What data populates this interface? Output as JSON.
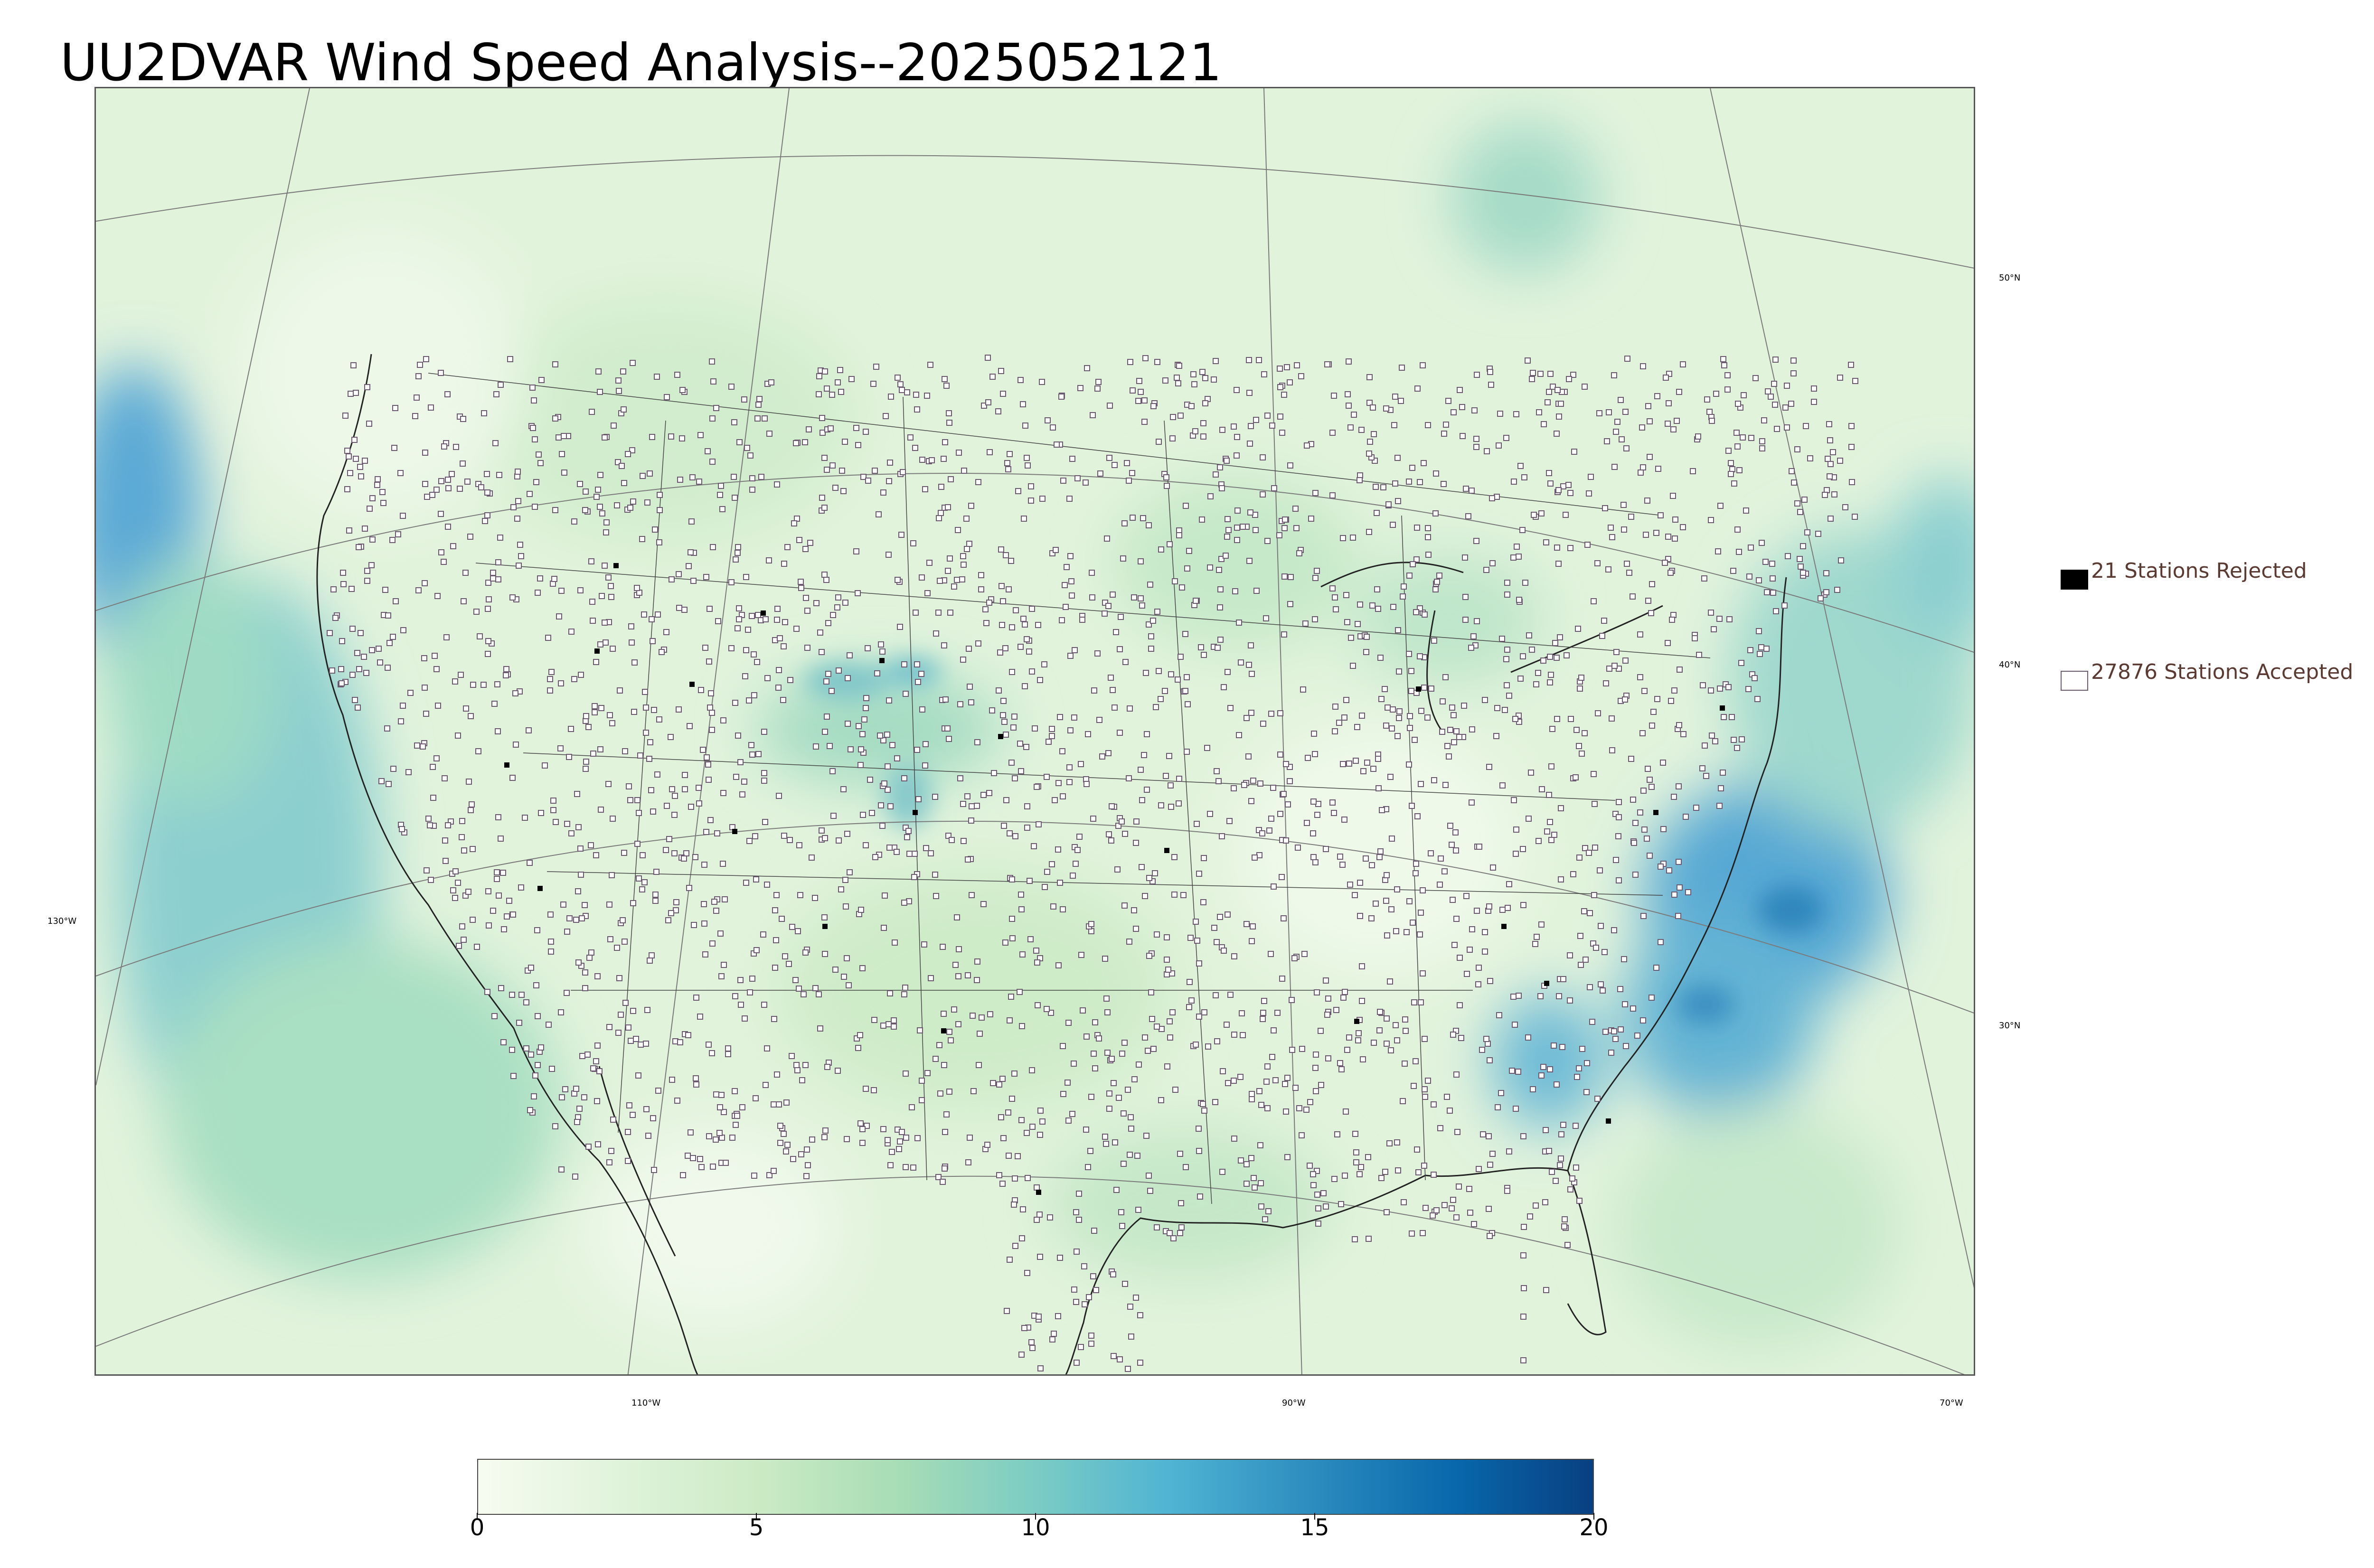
{
  "title": "UU2DVAR Wind Speed Analysis--2025052121",
  "map": {
    "meridian_labels": [
      "110°W",
      "90°W",
      "70°W",
      "130°W"
    ],
    "parallel_labels": [
      "50°N",
      "40°N",
      "30°N"
    ]
  },
  "legend": {
    "rejected": {
      "label": "21 Stations Rejected",
      "color": "#000000"
    },
    "accepted": {
      "label": "27876 Stations Accepted",
      "color": "#ffffff"
    }
  },
  "colorbar": {
    "min": 0,
    "max": 20,
    "tick_labels": [
      "0",
      "5",
      "10",
      "15",
      "20"
    ],
    "tick_values": [
      0,
      5,
      10,
      15,
      20
    ],
    "colors": [
      "#f7fcf0",
      "#e0f3db",
      "#ccebc5",
      "#a8ddb5",
      "#7bccc4",
      "#4eb3d3",
      "#2b8cbe",
      "#0868ac",
      "#084081"
    ]
  }
}
